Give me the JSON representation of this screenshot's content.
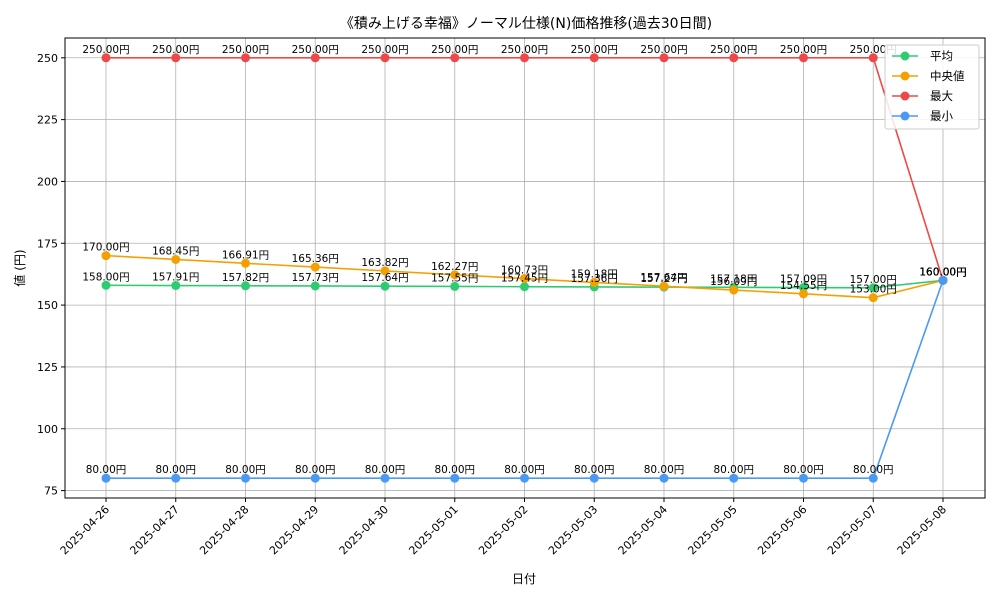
{
  "chart_data": {
    "type": "line",
    "title": "《積み上げる幸福》ノーマル仕様(N)価格推移(過去30日間)",
    "xlabel": "日付",
    "ylabel": "値 (円)",
    "ylim": [
      72,
      258
    ],
    "yticks": [
      75,
      100,
      125,
      150,
      175,
      200,
      225,
      250
    ],
    "grid": true,
    "legend_position": "top-right",
    "label_suffix": "円",
    "categories": [
      "2025-04-26",
      "2025-04-27",
      "2025-04-28",
      "2025-04-29",
      "2025-04-30",
      "2025-05-01",
      "2025-05-02",
      "2025-05-03",
      "2025-05-04",
      "2025-05-05",
      "2025-05-06",
      "2025-05-07",
      "2025-05-08"
    ],
    "series": [
      {
        "name": "平均",
        "color": "#2ecc71",
        "values": [
          158.0,
          157.91,
          157.82,
          157.73,
          157.64,
          157.55,
          157.45,
          157.36,
          157.27,
          157.18,
          157.09,
          157.0,
          160.0
        ]
      },
      {
        "name": "中央値",
        "color": "#f5a000",
        "values": [
          170.0,
          168.45,
          166.91,
          165.36,
          163.82,
          162.27,
          160.73,
          159.18,
          157.64,
          156.09,
          154.55,
          153.0,
          160.0
        ]
      },
      {
        "name": "最大",
        "color": "#f04848",
        "values": [
          250.0,
          250.0,
          250.0,
          250.0,
          250.0,
          250.0,
          250.0,
          250.0,
          250.0,
          250.0,
          250.0,
          250.0,
          160.0
        ]
      },
      {
        "name": "最小",
        "color": "#4a9af5",
        "values": [
          80.0,
          80.0,
          80.0,
          80.0,
          80.0,
          80.0,
          80.0,
          80.0,
          80.0,
          80.0,
          80.0,
          80.0,
          160.0
        ]
      }
    ]
  }
}
